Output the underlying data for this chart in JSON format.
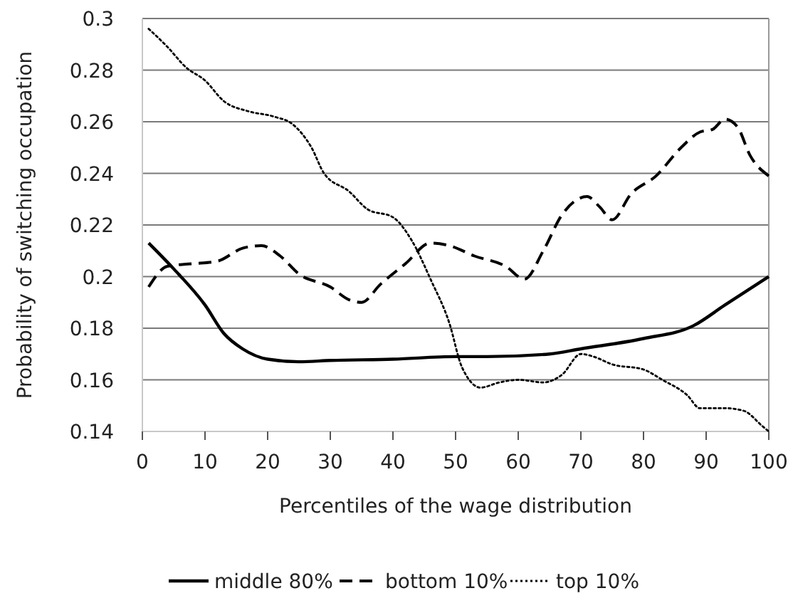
{
  "chart_data": {
    "type": "line",
    "xlabel": "Percentiles of the wage distribution",
    "ylabel": "Probability of switching occupation",
    "xlim": [
      0,
      100
    ],
    "xticks": [
      0,
      10,
      20,
      30,
      40,
      50,
      60,
      70,
      80,
      90,
      100
    ],
    "ylim": [
      0.14,
      0.3
    ],
    "yticks": [
      0.14,
      0.16,
      0.18,
      0.2,
      0.22,
      0.24,
      0.26,
      0.28,
      0.3
    ],
    "grid": "y",
    "legend": "bottom",
    "marker": "none",
    "series": [
      {
        "name": "middle 80%",
        "color": "#000000",
        "line_style": "solid",
        "x": [
          1,
          5,
          10,
          13,
          16,
          20,
          25,
          30,
          40,
          50,
          55,
          65,
          70,
          80,
          88,
          93,
          100
        ],
        "values": [
          0.213,
          0.203,
          0.189,
          0.178,
          0.172,
          0.168,
          0.167,
          0.1675,
          0.168,
          0.169,
          0.169,
          0.17,
          0.172,
          0.176,
          0.181,
          0.189,
          0.2
        ]
      },
      {
        "name": "bottom 10%",
        "color": "#000000",
        "line_style": "dashed",
        "x": [
          1,
          4,
          8,
          12,
          16,
          19,
          22,
          25,
          30,
          33,
          35,
          38,
          42,
          46,
          49,
          53,
          58,
          61,
          64,
          67,
          71,
          73,
          75,
          78,
          82,
          86,
          89,
          91,
          93,
          95,
          97,
          100
        ],
        "values": [
          0.196,
          0.204,
          0.205,
          0.206,
          0.211,
          0.212,
          0.208,
          0.201,
          0.196,
          0.191,
          0.19,
          0.197,
          0.205,
          0.213,
          0.212,
          0.208,
          0.204,
          0.199,
          0.21,
          0.224,
          0.231,
          0.227,
          0.222,
          0.232,
          0.239,
          0.25,
          0.256,
          0.257,
          0.261,
          0.258,
          0.247,
          0.239
        ]
      },
      {
        "name": "top 10%",
        "color": "#000000",
        "line_style": "dotted",
        "x": [
          1,
          4,
          7,
          10,
          13,
          17,
          21,
          24,
          27,
          29,
          33,
          36,
          40,
          43,
          46,
          49,
          51,
          54,
          57,
          60,
          64,
          67,
          70,
          72,
          75,
          80,
          83,
          87,
          89,
          93,
          96,
          99,
          100
        ],
        "values": [
          0.296,
          0.289,
          0.281,
          0.276,
          0.268,
          0.264,
          0.262,
          0.259,
          0.25,
          0.24,
          0.233,
          0.226,
          0.223,
          0.214,
          0.199,
          0.182,
          0.165,
          0.157,
          0.159,
          0.16,
          0.159,
          0.162,
          0.17,
          0.169,
          0.166,
          0.164,
          0.16,
          0.154,
          0.149,
          0.149,
          0.148,
          0.142,
          0.14
        ]
      }
    ]
  }
}
